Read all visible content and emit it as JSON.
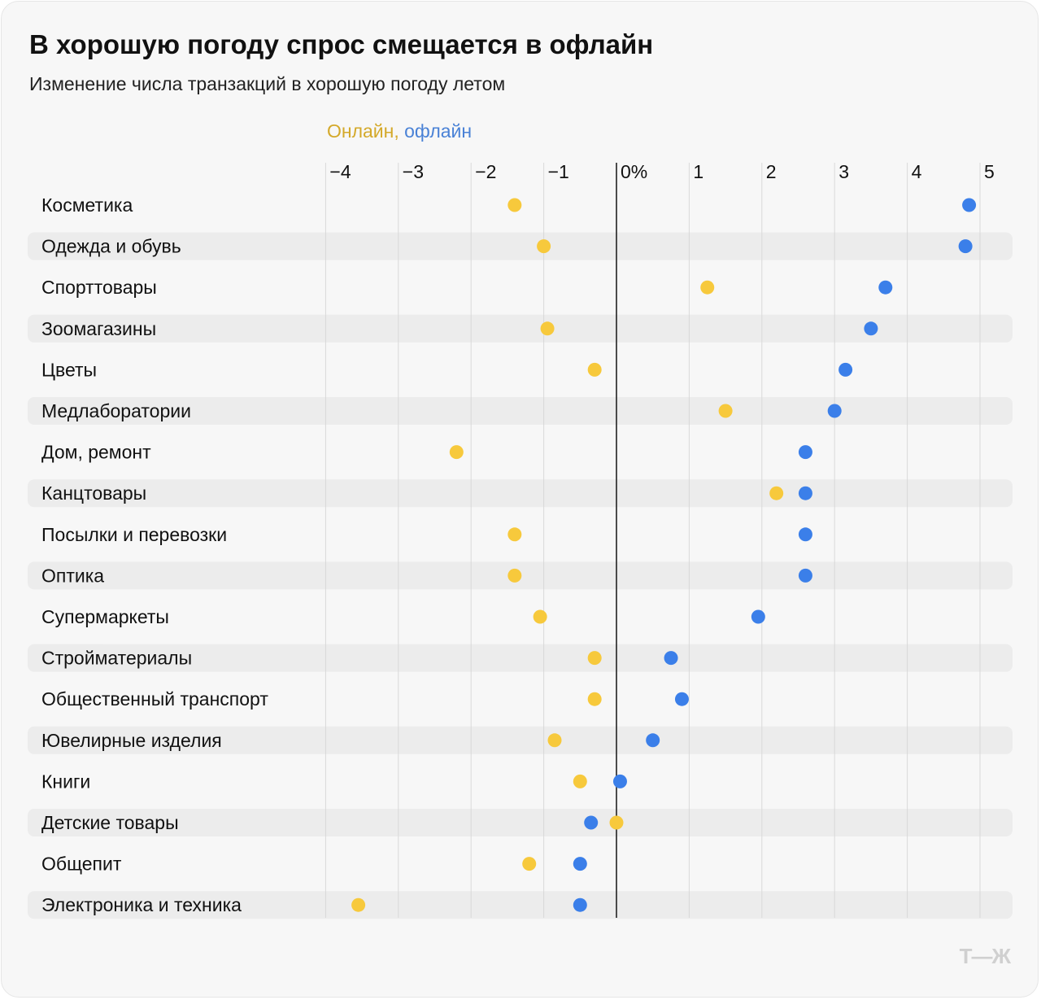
{
  "title": "В хорошую погоду спрос смещается в офлайн",
  "subtitle": "Изменение числа транзакций в хорошую погоду летом",
  "legend": {
    "online": "Онлайн,",
    "offline": "офлайн"
  },
  "logo": "Т—Ж",
  "colors": {
    "online": "#f7c93c",
    "offline": "#3b7fe9",
    "stripe": "#ececec",
    "grid": "#d9d9d9",
    "zero": "#222222"
  },
  "chart_data": {
    "type": "dot",
    "xlim": [
      -4,
      5
    ],
    "ticks": [
      -4,
      -3,
      -2,
      -1,
      0,
      1,
      2,
      3,
      4,
      5
    ],
    "tick_labels": [
      "−4",
      "−3",
      "−2",
      "−1",
      "0%",
      "1",
      "2",
      "3",
      "4",
      "5"
    ],
    "grid": true,
    "categories": [
      "Косметика",
      "Одежда и обувь",
      "Спорттовары",
      "Зоомагазины",
      "Цветы",
      "Медлаборатории",
      "Дом, ремонт",
      "Канцтовары",
      "Посылки и перевозки",
      "Оптика",
      "Супермаркеты",
      "Стройматериалы",
      "Общественный транспорт",
      "Ювелирные изделия",
      "Книги",
      "Детские товары",
      "Общепит",
      "Электроника и техника"
    ],
    "series": [
      {
        "name": "Онлайн",
        "values": [
          -1.4,
          -1.0,
          1.25,
          -0.95,
          -0.3,
          1.5,
          -2.2,
          2.2,
          -1.4,
          -1.4,
          -1.05,
          -0.3,
          -0.3,
          -0.85,
          -0.5,
          0.0,
          -1.2,
          -3.55
        ]
      },
      {
        "name": "офлайн",
        "values": [
          4.85,
          4.8,
          3.7,
          3.5,
          3.15,
          3.0,
          2.6,
          2.6,
          2.6,
          2.6,
          1.95,
          0.75,
          0.9,
          0.5,
          0.05,
          -0.35,
          -0.5,
          -0.5
        ]
      }
    ]
  }
}
